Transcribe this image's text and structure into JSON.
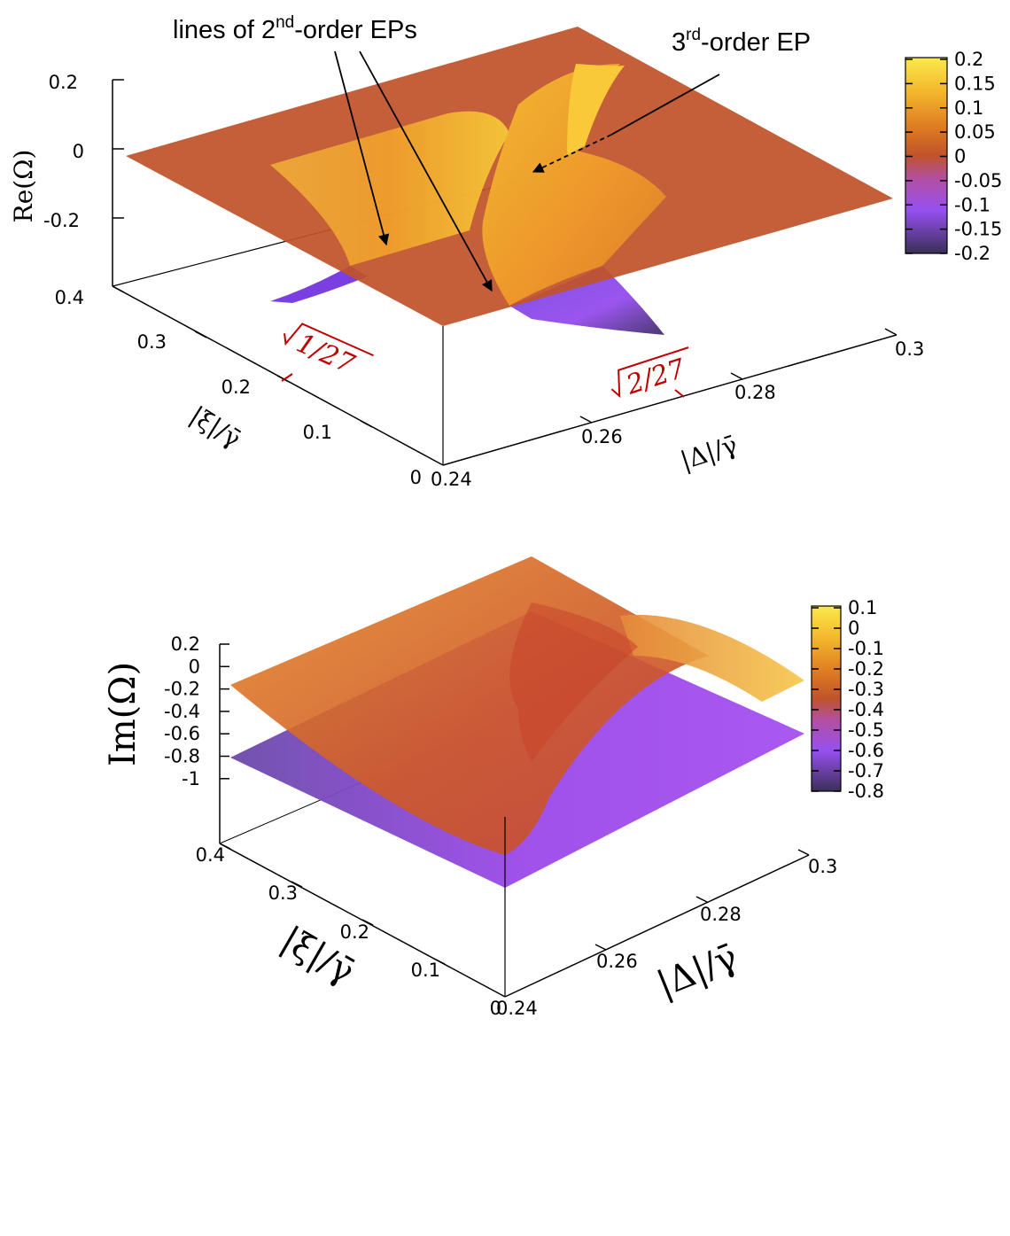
{
  "chart_data": [
    {
      "type": "surface3d",
      "zlabel": "Re(Ω)",
      "xlabel": "|Δ|/γ̄",
      "ylabel": "|ξ|/γ̄",
      "x_ticks": [
        "0.24",
        "0.26",
        "0.28",
        "0.3"
      ],
      "y_ticks": [
        "0",
        "0.1",
        "0.2",
        "0.3",
        "0.4"
      ],
      "z_ticks": [
        "0.2",
        "0",
        "-0.2"
      ],
      "zlim": [
        -0.2,
        0.2
      ],
      "colorbar": {
        "ticks": [
          "0.2",
          "0.15",
          "0.1",
          "0.05",
          "0",
          "-0.05",
          "-0.1",
          "-0.15",
          "-0.2"
        ],
        "range": [
          -0.2,
          0.2
        ],
        "colors": [
          "#3b2f58",
          "#7a2fe8",
          "#b05ef0",
          "#c55aa0",
          "#c0532a",
          "#de7a22",
          "#f0a128",
          "#f8c72b",
          "#fbe94a"
        ]
      },
      "annotations": {
        "ep2_lines": "lines of 2",
        "ep2_sup": "nd",
        "ep2_rest": "-order EPs",
        "ep3": "3",
        "ep3_sup": "rd",
        "ep3_rest": "-order EP",
        "sqrt1": "1/27",
        "sqrt2": "2/27"
      }
    },
    {
      "type": "surface3d",
      "zlabel": "Im(Ω)",
      "xlabel": "|Δ|/γ̄",
      "ylabel": "|ξ|/γ̄",
      "x_ticks": [
        "0.24",
        "0.26",
        "0.28",
        "0.3"
      ],
      "y_ticks": [
        "0",
        "0.1",
        "0.2",
        "0.3",
        "0.4"
      ],
      "z_ticks": [
        "0.2",
        "0",
        "-0.2",
        "-0.4",
        "-0.6",
        "-0.8",
        "-1"
      ],
      "zlim": [
        -1,
        0.2
      ],
      "colorbar": {
        "ticks": [
          "0.1",
          "0",
          "-0.1",
          "-0.2",
          "-0.3",
          "-0.4",
          "-0.5",
          "-0.6",
          "-0.7",
          "-0.8"
        ],
        "range": [
          -0.8,
          0.1
        ],
        "colors": [
          "#3b2f58",
          "#7a2fe8",
          "#b05ef0",
          "#c55aa0",
          "#c0532a",
          "#de7a22",
          "#f0a128",
          "#f8c72b",
          "#fbe94a"
        ]
      }
    }
  ]
}
